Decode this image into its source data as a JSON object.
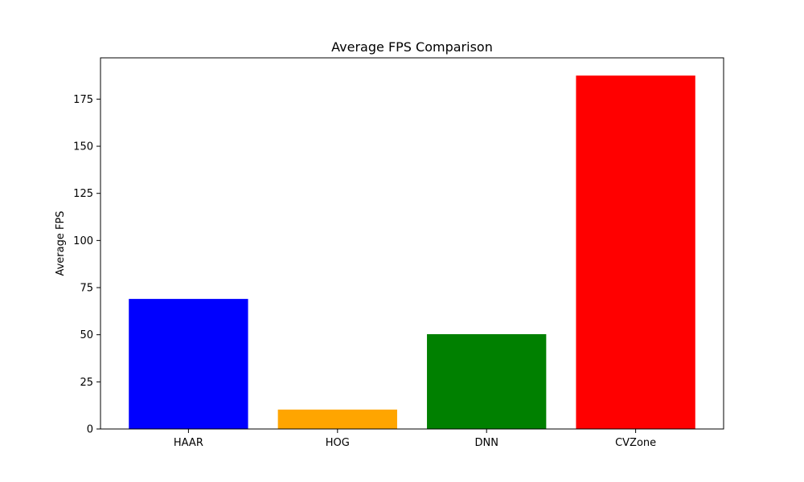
{
  "chart_data": {
    "type": "bar",
    "title": "Average FPS Comparison",
    "xlabel": "",
    "ylabel": "Average FPS",
    "categories": [
      "HAAR",
      "HOG",
      "DNN",
      "CVZone"
    ],
    "values": [
      69,
      10.3,
      50.3,
      187.5
    ],
    "colors": [
      "#0000ff",
      "#ffa500",
      "#008000",
      "#ff0000"
    ],
    "ylim": [
      0,
      196.9
    ],
    "yticks": [
      0,
      25,
      50,
      75,
      100,
      125,
      150,
      175
    ],
    "grid": false,
    "legend": "none"
  }
}
